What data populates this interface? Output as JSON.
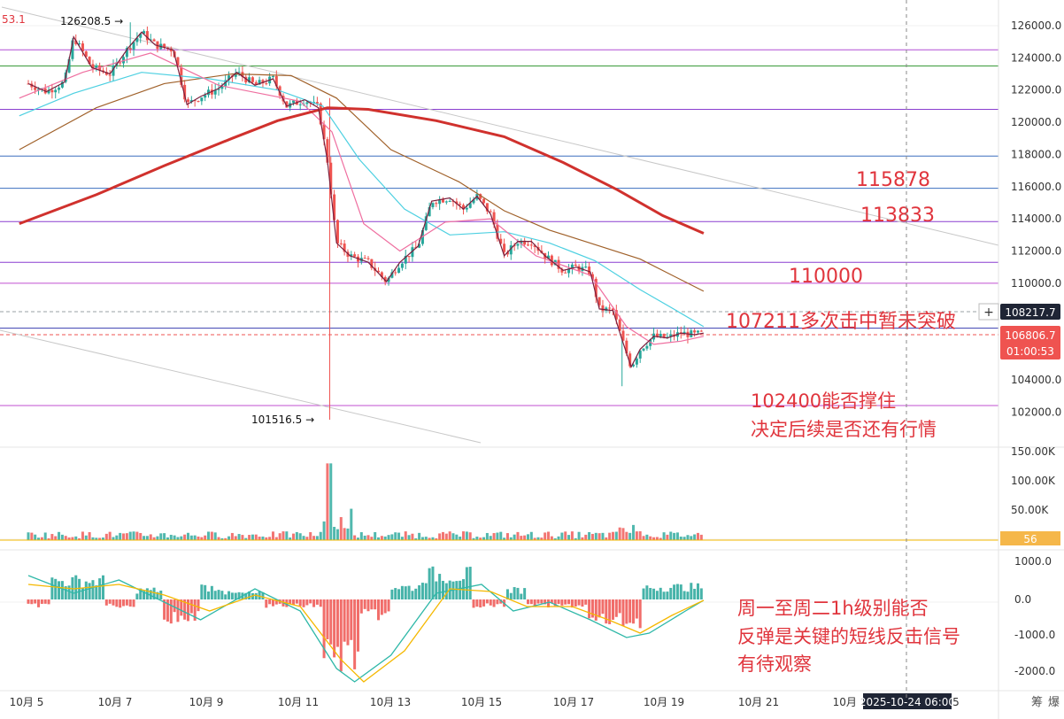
{
  "chart_data": {
    "type": "candlestick",
    "price_axis": {
      "ylim": [
        100400,
        126600
      ],
      "ticks": [
        126000,
        124000,
        122000,
        120000,
        118000,
        116000,
        114000,
        112000,
        110000,
        104000,
        102000
      ],
      "tick_labels": [
        "126000.0",
        "124000.0",
        "122000.0",
        "120000.0",
        "118000.0",
        "116000.0",
        "114000.0",
        "112000.0",
        "110000.0",
        "104000.0",
        "102000.0"
      ]
    },
    "x_axis": {
      "labels": [
        "10月 5",
        "10月 7",
        "10月 9",
        "10月 11",
        "10月 13",
        "10月 15",
        "10月 17",
        "10月 19",
        "10月 21",
        "10月 2",
        "2025-10-24  06:00",
        "5"
      ]
    },
    "corner_value": "53.1",
    "markers": {
      "high": {
        "label": "126208.5 →",
        "value": 126208.5
      },
      "low": {
        "label": "101516.5 →",
        "value": 101516.5
      }
    },
    "price_tags": {
      "crosshair": "108217.7",
      "crosshair_plus": "+",
      "last": "106806.7",
      "countdown": "01:00:53"
    },
    "horizontal_levels": [
      {
        "value": 124500,
        "color": "#b04fd6"
      },
      {
        "value": 123500,
        "color": "#3a9b3a"
      },
      {
        "value": 120800,
        "color": "#8a3fd0"
      },
      {
        "value": 117900,
        "color": "#3b6fbf"
      },
      {
        "value": 115900,
        "color": "#3b6fbf"
      },
      {
        "value": 113830,
        "color": "#8a3fd0"
      },
      {
        "value": 111300,
        "color": "#8a3fd0"
      },
      {
        "value": 110000,
        "color": "#c04fd0"
      },
      {
        "value": 107210,
        "color": "#3a3fb0"
      },
      {
        "value": 102400,
        "color": "#c04fd0"
      }
    ],
    "level_labels": [
      "115878",
      "113833",
      "110000",
      "107211多次击中暂未突破"
    ],
    "annotations": {
      "support_line1": "102400能否撑住",
      "support_line2": "决定后续是否还有行情",
      "macd_line1": "周一至周二1h级别能否",
      "macd_line2": "反弹是关键的短线反击信号",
      "macd_line3": "有待观察"
    },
    "volume_axis": {
      "tick_labels": [
        "150.00K",
        "100.00K",
        "50.00K"
      ],
      "current": "56"
    },
    "macd_axis": {
      "tick_labels": [
        "1000.0",
        "0.0",
        "-1000.0",
        "-2000.0"
      ]
    },
    "price_series": [
      {
        "time": 0.0,
        "price": 122400
      },
      {
        "time": 0.4,
        "price": 121900
      },
      {
        "time": 0.8,
        "price": 122500
      },
      {
        "time": 1.0,
        "price": 125300
      },
      {
        "time": 1.4,
        "price": 123400
      },
      {
        "time": 1.8,
        "price": 123000
      },
      {
        "time": 2.2,
        "price": 124600
      },
      {
        "time": 2.5,
        "price": 125600
      },
      {
        "time": 2.8,
        "price": 124800
      },
      {
        "time": 3.2,
        "price": 124500
      },
      {
        "time": 3.5,
        "price": 121100
      },
      {
        "time": 3.8,
        "price": 121600
      },
      {
        "time": 4.2,
        "price": 122100
      },
      {
        "time": 4.6,
        "price": 123100
      },
      {
        "time": 5.0,
        "price": 122300
      },
      {
        "time": 5.4,
        "price": 122700
      },
      {
        "time": 5.7,
        "price": 121000
      },
      {
        "time": 6.1,
        "price": 121400
      },
      {
        "time": 6.4,
        "price": 120900
      },
      {
        "time": 6.6,
        "price": 117600
      },
      {
        "time": 6.8,
        "price": 112500
      },
      {
        "time": 7.1,
        "price": 111700
      },
      {
        "time": 7.5,
        "price": 111300
      },
      {
        "time": 7.9,
        "price": 110100
      },
      {
        "time": 8.2,
        "price": 111300
      },
      {
        "time": 8.6,
        "price": 112300
      },
      {
        "time": 8.9,
        "price": 115100
      },
      {
        "time": 9.3,
        "price": 115300
      },
      {
        "time": 9.6,
        "price": 114600
      },
      {
        "time": 9.9,
        "price": 115400
      },
      {
        "time": 10.2,
        "price": 114300
      },
      {
        "time": 10.5,
        "price": 111700
      },
      {
        "time": 10.8,
        "price": 112600
      },
      {
        "time": 11.1,
        "price": 112600
      },
      {
        "time": 11.4,
        "price": 111700
      },
      {
        "time": 11.8,
        "price": 110800
      },
      {
        "time": 12.1,
        "price": 111000
      },
      {
        "time": 12.4,
        "price": 110700
      },
      {
        "time": 12.6,
        "price": 108400
      },
      {
        "time": 12.9,
        "price": 108300
      },
      {
        "time": 13.1,
        "price": 106500
      },
      {
        "time": 13.3,
        "price": 104800
      },
      {
        "time": 13.5,
        "price": 105900
      },
      {
        "time": 13.8,
        "price": 106700
      },
      {
        "time": 14.1,
        "price": 106600
      },
      {
        "time": 14.4,
        "price": 106900
      },
      {
        "time": 14.7,
        "price": 106800
      },
      {
        "time": 14.9,
        "price": 106900
      }
    ],
    "ma200": [
      {
        "time": -0.2,
        "value": 113700
      },
      {
        "time": 1.5,
        "value": 115500
      },
      {
        "time": 3.0,
        "value": 117300
      },
      {
        "time": 4.5,
        "value": 119000
      },
      {
        "time": 5.5,
        "value": 120100
      },
      {
        "time": 6.6,
        "value": 120900
      },
      {
        "time": 7.5,
        "value": 120800
      },
      {
        "time": 9.0,
        "value": 120100
      },
      {
        "time": 10.5,
        "value": 119100
      },
      {
        "time": 11.8,
        "value": 117500
      },
      {
        "time": 13.0,
        "value": 115800
      },
      {
        "time": 14.0,
        "value": 114200
      },
      {
        "time": 14.9,
        "value": 113100
      }
    ],
    "ma_brown": [
      {
        "time": -0.2,
        "value": 118300
      },
      {
        "time": 1.5,
        "value": 120900
      },
      {
        "time": 3.0,
        "value": 122400
      },
      {
        "time": 4.5,
        "value": 123000
      },
      {
        "time": 5.8,
        "value": 122900
      },
      {
        "time": 6.8,
        "value": 121500
      },
      {
        "time": 8.0,
        "value": 118300
      },
      {
        "time": 9.5,
        "value": 116300
      },
      {
        "time": 10.5,
        "value": 114500
      },
      {
        "time": 11.5,
        "value": 113300
      },
      {
        "time": 12.5,
        "value": 112400
      },
      {
        "time": 13.5,
        "value": 111500
      },
      {
        "time": 14.9,
        "value": 109500
      }
    ],
    "ma_cyan": [
      {
        "time": -0.2,
        "value": 120400
      },
      {
        "time": 1.0,
        "value": 121800
      },
      {
        "time": 2.5,
        "value": 123100
      },
      {
        "time": 4.0,
        "value": 122700
      },
      {
        "time": 5.5,
        "value": 122000
      },
      {
        "time": 6.5,
        "value": 121000
      },
      {
        "time": 7.3,
        "value": 117700
      },
      {
        "time": 8.3,
        "value": 114600
      },
      {
        "time": 9.3,
        "value": 113000
      },
      {
        "time": 10.5,
        "value": 113200
      },
      {
        "time": 11.5,
        "value": 112500
      },
      {
        "time": 12.5,
        "value": 111400
      },
      {
        "time": 13.5,
        "value": 109600
      },
      {
        "time": 14.3,
        "value": 108300
      },
      {
        "time": 14.9,
        "value": 107300
      }
    ],
    "ma_pink": [
      {
        "time": -0.2,
        "value": 121500
      },
      {
        "time": 1.2,
        "value": 123100
      },
      {
        "time": 2.7,
        "value": 124300
      },
      {
        "time": 4.2,
        "value": 122300
      },
      {
        "time": 6.0,
        "value": 121300
      },
      {
        "time": 6.7,
        "value": 119400
      },
      {
        "time": 7.4,
        "value": 113700
      },
      {
        "time": 8.2,
        "value": 112000
      },
      {
        "time": 9.2,
        "value": 113800
      },
      {
        "time": 10.2,
        "value": 114000
      },
      {
        "time": 11.2,
        "value": 111700
      },
      {
        "time": 12.4,
        "value": 110500
      },
      {
        "time": 13.2,
        "value": 107300
      },
      {
        "time": 13.8,
        "value": 106200
      },
      {
        "time": 14.4,
        "value": 106400
      },
      {
        "time": 14.9,
        "value": 106700
      }
    ],
    "colors": {
      "up": "#26a69a",
      "down": "#ef5350",
      "ma200": "#d0312d",
      "ma_brown": "#a0612a",
      "ma_cyan": "#4dd0e1",
      "ma_pink": "#ef6fa0",
      "signal": "#f5b800",
      "annotation": "#e0353d"
    }
  }
}
